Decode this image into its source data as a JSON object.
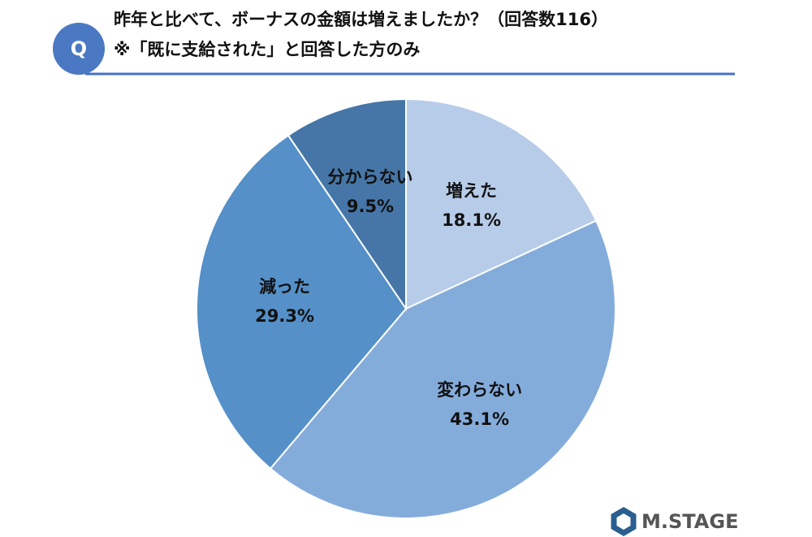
{
  "badge": "Q",
  "logo": "M.STAGE",
  "chart_data": {
    "type": "pie",
    "title": "昨年と比べて、ボーナスの金額は増えましたか？（回答数116）",
    "subtitle": "※「既に支給された」と回答した方のみ",
    "categories": [
      "増えた",
      "変わらない",
      "減った",
      "分からない"
    ],
    "values": [
      18.1,
      43.1,
      29.3,
      9.5
    ],
    "value_labels": [
      "18.1%",
      "43.1%",
      "29.3%",
      "9.5%"
    ],
    "colors": [
      "#b7cce9",
      "#84acdb",
      "#5590c8",
      "#4676a7"
    ]
  }
}
